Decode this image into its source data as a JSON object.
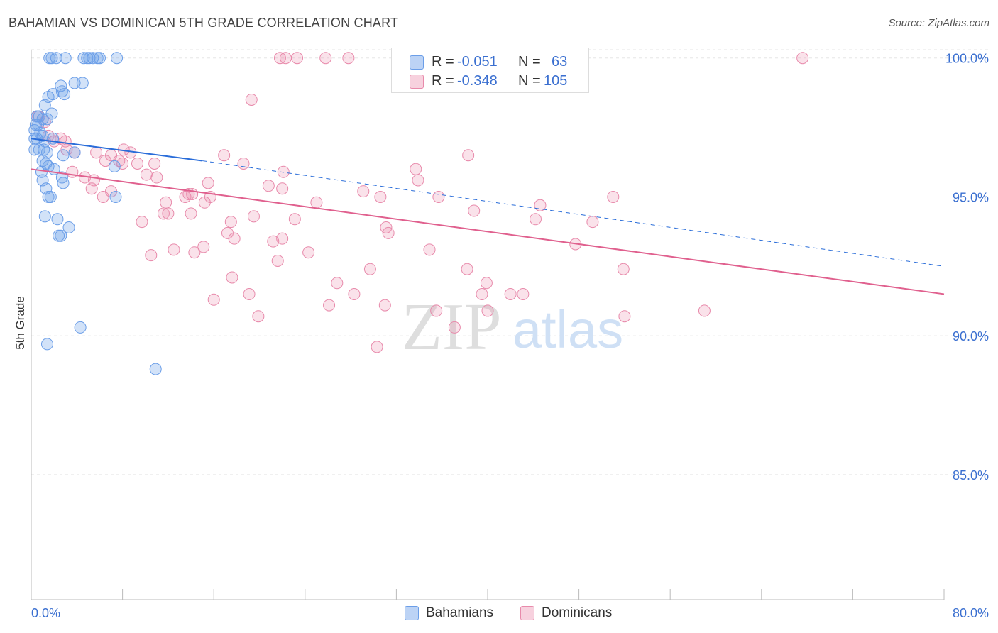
{
  "title": "BAHAMIAN VS DOMINICAN 5TH GRADE CORRELATION CHART",
  "source": "Source: ZipAtlas.com",
  "watermark": {
    "zip": "ZIP",
    "atlas": "atlas"
  },
  "colors": {
    "blue": "#6b9ee8",
    "blue_fill": "rgba(107,158,232,0.30)",
    "blue_line": "#2a6dd9",
    "pink": "#e88aab",
    "pink_fill": "rgba(236,140,173,0.25)",
    "pink_line": "#e0608e",
    "axis_text": "#3a6fd0",
    "grid": "#e6e6e6"
  },
  "legend": {
    "rows": [
      {
        "r_label": "R =",
        "r_value": "-0.051",
        "n_label": "N =",
        "n_value": "63"
      },
      {
        "r_label": "R =",
        "r_value": "-0.348",
        "n_label": "N =",
        "n_value": "105"
      }
    ]
  },
  "bottom_legend": {
    "bahamians": "Bahamians",
    "dominicans": "Dominicans"
  },
  "chart_data": {
    "type": "scatter",
    "title": "BAHAMIAN VS DOMINICAN 5TH GRADE CORRELATION CHART",
    "xlabel": "",
    "ylabel": "5th Grade",
    "xlim": [
      0,
      80
    ],
    "ylim": [
      80.5,
      100.3
    ],
    "x_tick_labels": [
      "0.0%",
      "80.0%"
    ],
    "y_ticks": [
      85,
      90,
      95,
      100
    ],
    "y_tick_labels": [
      "85.0%",
      "90.0%",
      "95.0%",
      "100.0%"
    ],
    "grid": true,
    "legend_position": "top-center",
    "series": [
      {
        "name": "Bahamians",
        "color": "#6b9ee8",
        "trend": {
          "x0": 0,
          "y0": 97.1,
          "x1": 15,
          "y1": 96.3,
          "dashed_to_x": 80,
          "dashed_to_y": 92.5
        },
        "points": [
          [
            1.6,
            100
          ],
          [
            1.8,
            100
          ],
          [
            2.2,
            100
          ],
          [
            3.0,
            100
          ],
          [
            4.6,
            100
          ],
          [
            4.9,
            100
          ],
          [
            5.1,
            100
          ],
          [
            5.4,
            100
          ],
          [
            5.8,
            100
          ],
          [
            6.0,
            100
          ],
          [
            7.5,
            100
          ],
          [
            2.6,
            99.0
          ],
          [
            3.8,
            99.1
          ],
          [
            4.5,
            99.1
          ],
          [
            2.7,
            98.8
          ],
          [
            2.9,
            98.7
          ],
          [
            1.5,
            98.6
          ],
          [
            1.9,
            98.7
          ],
          [
            1.2,
            98.3
          ],
          [
            0.5,
            97.9
          ],
          [
            0.7,
            97.9
          ],
          [
            1.0,
            97.8
          ],
          [
            1.4,
            97.8
          ],
          [
            1.8,
            98.0
          ],
          [
            0.4,
            97.6
          ],
          [
            0.6,
            97.6
          ],
          [
            0.3,
            97.4
          ],
          [
            0.8,
            97.3
          ],
          [
            0.3,
            97.1
          ],
          [
            0.5,
            97.1
          ],
          [
            1.0,
            97.2
          ],
          [
            1.2,
            97.0
          ],
          [
            1.9,
            97.1
          ],
          [
            0.3,
            96.7
          ],
          [
            0.7,
            96.7
          ],
          [
            1.1,
            96.7
          ],
          [
            1.4,
            96.6
          ],
          [
            2.8,
            96.5
          ],
          [
            3.8,
            96.6
          ],
          [
            1.0,
            96.3
          ],
          [
            1.3,
            96.2
          ],
          [
            1.5,
            96.1
          ],
          [
            2.0,
            96.0
          ],
          [
            7.3,
            96.1
          ],
          [
            0.9,
            95.9
          ],
          [
            2.7,
            95.7
          ],
          [
            1.0,
            95.6
          ],
          [
            2.8,
            95.5
          ],
          [
            1.3,
            95.3
          ],
          [
            1.5,
            95.0
          ],
          [
            1.7,
            95.0
          ],
          [
            7.4,
            95.0
          ],
          [
            1.2,
            94.3
          ],
          [
            2.3,
            94.2
          ],
          [
            3.3,
            93.9
          ],
          [
            2.4,
            93.6
          ],
          [
            2.6,
            93.6
          ],
          [
            4.3,
            90.3
          ],
          [
            1.4,
            89.7
          ],
          [
            10.9,
            88.8
          ]
        ]
      },
      {
        "name": "Dominicans",
        "color": "#e88aab",
        "trend": {
          "x0": 0,
          "y0": 96.0,
          "x1": 80,
          "y1": 91.5
        },
        "points": [
          [
            21.8,
            100
          ],
          [
            22.3,
            100
          ],
          [
            23.3,
            100
          ],
          [
            25.8,
            100
          ],
          [
            27.8,
            100
          ],
          [
            32.8,
            100
          ],
          [
            67.6,
            100
          ],
          [
            19.3,
            98.5
          ],
          [
            0.6,
            97.9
          ],
          [
            1.2,
            97.7
          ],
          [
            1.5,
            97.2
          ],
          [
            2.0,
            97.0
          ],
          [
            2.6,
            97.1
          ],
          [
            3.0,
            97.0
          ],
          [
            3.1,
            96.7
          ],
          [
            3.8,
            96.6
          ],
          [
            5.7,
            96.6
          ],
          [
            7.0,
            96.5
          ],
          [
            8.1,
            96.7
          ],
          [
            8.7,
            96.6
          ],
          [
            16.9,
            96.5
          ],
          [
            38.3,
            96.5
          ],
          [
            6.5,
            96.3
          ],
          [
            7.7,
            96.3
          ],
          [
            8.0,
            96.2
          ],
          [
            9.3,
            96.2
          ],
          [
            10.8,
            96.2
          ],
          [
            18.6,
            96.2
          ],
          [
            33.7,
            96.0
          ],
          [
            22.1,
            95.9
          ],
          [
            3.6,
            95.9
          ],
          [
            4.7,
            95.7
          ],
          [
            5.5,
            95.6
          ],
          [
            10.1,
            95.8
          ],
          [
            11.0,
            95.7
          ],
          [
            15.5,
            95.5
          ],
          [
            33.9,
            95.6
          ],
          [
            5.3,
            95.3
          ],
          [
            7.0,
            95.2
          ],
          [
            11.8,
            94.8
          ],
          [
            13.5,
            95.0
          ],
          [
            13.8,
            95.1
          ],
          [
            14.1,
            95.1
          ],
          [
            15.2,
            94.8
          ],
          [
            15.7,
            95.0
          ],
          [
            20.8,
            95.4
          ],
          [
            22.0,
            95.3
          ],
          [
            29.1,
            95.2
          ],
          [
            30.6,
            95.0
          ],
          [
            35.7,
            95.0
          ],
          [
            51.0,
            95.0
          ],
          [
            6.3,
            95.0
          ],
          [
            9.7,
            94.1
          ],
          [
            11.6,
            94.4
          ],
          [
            12.0,
            94.4
          ],
          [
            14.0,
            94.4
          ],
          [
            23.1,
            94.2
          ],
          [
            25.0,
            94.8
          ],
          [
            38.8,
            94.5
          ],
          [
            44.2,
            94.2
          ],
          [
            44.6,
            94.7
          ],
          [
            49.2,
            94.1
          ],
          [
            17.5,
            94.1
          ],
          [
            19.5,
            94.3
          ],
          [
            31.1,
            93.9
          ],
          [
            31.3,
            93.7
          ],
          [
            17.2,
            93.7
          ],
          [
            17.8,
            93.5
          ],
          [
            21.2,
            93.4
          ],
          [
            22.0,
            93.5
          ],
          [
            47.7,
            93.3
          ],
          [
            10.5,
            92.9
          ],
          [
            12.5,
            93.1
          ],
          [
            14.3,
            93.0
          ],
          [
            15.1,
            93.2
          ],
          [
            24.3,
            93.0
          ],
          [
            34.9,
            93.1
          ],
          [
            21.6,
            92.7
          ],
          [
            17.6,
            92.1
          ],
          [
            26.8,
            91.9
          ],
          [
            29.7,
            92.4
          ],
          [
            38.2,
            92.4
          ],
          [
            39.9,
            91.9
          ],
          [
            51.9,
            92.4
          ],
          [
            16.0,
            91.3
          ],
          [
            19.1,
            91.5
          ],
          [
            28.3,
            91.5
          ],
          [
            39.5,
            91.5
          ],
          [
            42.0,
            91.5
          ],
          [
            43.1,
            91.5
          ],
          [
            19.9,
            90.7
          ],
          [
            26.1,
            91.1
          ],
          [
            31.0,
            91.1
          ],
          [
            35.5,
            90.9
          ],
          [
            40.0,
            90.9
          ],
          [
            52.0,
            90.7
          ],
          [
            59.0,
            90.9
          ],
          [
            37.1,
            90.3
          ],
          [
            30.3,
            89.6
          ]
        ]
      }
    ]
  }
}
